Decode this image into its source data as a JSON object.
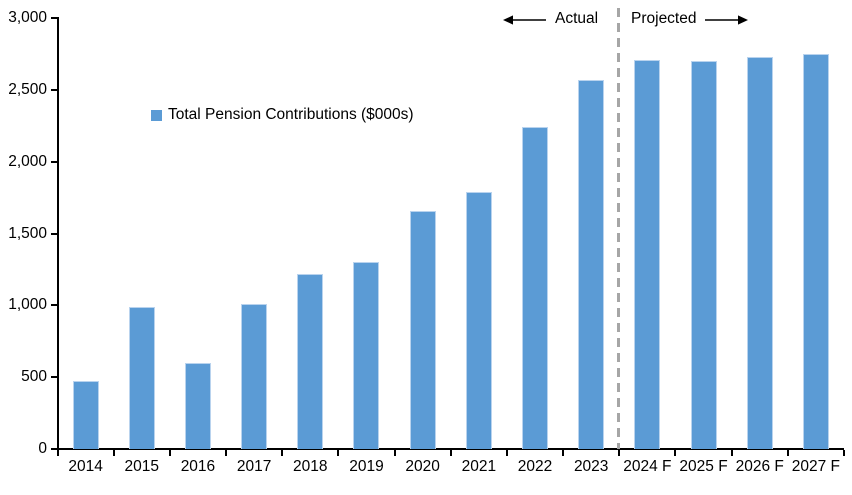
{
  "chart_data": {
    "type": "bar",
    "title": "",
    "legend": "Total Pension Contributions ($000s)",
    "legend_position": "upper-left-inside",
    "categories": [
      "2014",
      "2015",
      "2016",
      "2017",
      "2018",
      "2019",
      "2020",
      "2021",
      "2022",
      "2023",
      "2024 F",
      "2025 F",
      "2026 F",
      "2027 F"
    ],
    "values": [
      470,
      990,
      600,
      1010,
      1220,
      1300,
      1660,
      1790,
      2240,
      2570,
      2710,
      2700,
      2730,
      2750
    ],
    "xlabel": "",
    "ylabel": "",
    "ylim": [
      0,
      3000
    ],
    "ytick_interval": 500,
    "ytick_labels": [
      "0",
      "500",
      "1,000",
      "1,500",
      "2,000",
      "2,500",
      "3,000"
    ],
    "grid": "off",
    "bar_color": "#5b9bd5",
    "bar_edge_color": "#b9d3ee",
    "axis_color": "#000000",
    "divider": {
      "after_category": "2023",
      "style": "dashed",
      "color": "#a6a6a6"
    },
    "annotations": [
      {
        "text": "Actual",
        "arrow": "left",
        "side": "left-of-divider"
      },
      {
        "text": "Projected",
        "arrow": "right",
        "side": "right-of-divider"
      }
    ]
  }
}
